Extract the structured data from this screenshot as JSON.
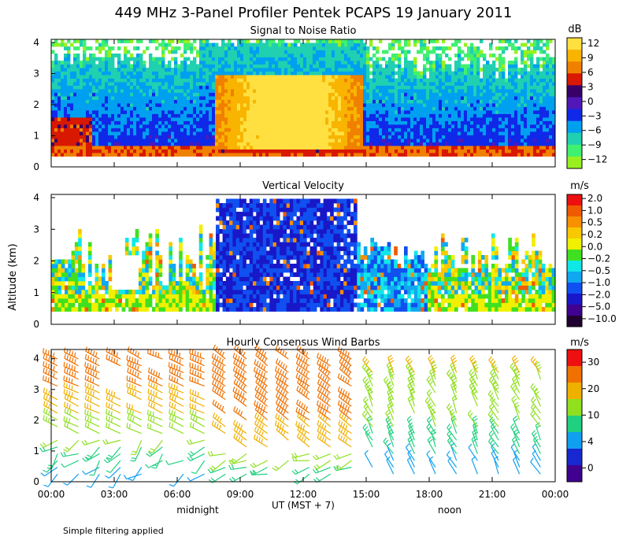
{
  "figure_title": "449 MHz 3-Panel Profiler Pentek PCAPS 19 January 2011",
  "y_axis_label": "Altitude (km)",
  "x_axis_label": "UT  (MST + 7)",
  "annotation_midnight": "midnight",
  "annotation_noon": "noon",
  "footnote": "Simple filtering applied",
  "chart_data": [
    {
      "type": "heatmap",
      "title": "Signal to Noise Ratio",
      "xlabel": "UT  (MST + 7)",
      "ylabel": "Altitude (km)",
      "x_ticks": [
        "00:00",
        "03:00",
        "06:00",
        "09:00",
        "12:00",
        "15:00",
        "18:00",
        "21:00",
        "00:00"
      ],
      "y_ticks": [
        "0",
        "1",
        "2",
        "3",
        "4"
      ],
      "ylim": [
        0,
        4.1
      ],
      "xlim_hours": [
        0,
        24
      ],
      "colorbar": {
        "unit": "dB",
        "labels": [
          "12",
          "9",
          "6",
          "3",
          "0",
          "−3",
          "−6",
          "−9",
          "−12"
        ],
        "colors": [
          "#ffe040",
          "#f8b400",
          "#f08000",
          "#d81800",
          "#380068",
          "#5018b8",
          "#1028e8",
          "#00a0f0",
          "#20d0b0",
          "#40f070",
          "#98f020"
        ]
      }
    },
    {
      "type": "heatmap",
      "title": "Vertical Velocity",
      "xlabel": "UT  (MST + 7)",
      "ylabel": "Altitude (km)",
      "x_ticks": [
        "00:00",
        "03:00",
        "06:00",
        "09:00",
        "12:00",
        "15:00",
        "18:00",
        "21:00",
        "00:00"
      ],
      "y_ticks": [
        "0",
        "1",
        "2",
        "3",
        "4"
      ],
      "ylim": [
        0,
        4.1
      ],
      "xlim_hours": [
        0,
        24
      ],
      "colorbar": {
        "unit": "m/s",
        "labels": [
          "2.0",
          "1.0",
          "0.5",
          "0.2",
          "0.0",
          "−0.2",
          "−0.5",
          "−1.0",
          "−2.0",
          "−5.0",
          "−10.0"
        ],
        "colors": [
          "#ee1010",
          "#f05a00",
          "#f89000",
          "#f8c800",
          "#f0f000",
          "#40e020",
          "#10e8e8",
          "#10a8f0",
          "#1050f0",
          "#1818c8",
          "#400090",
          "#200030"
        ]
      }
    },
    {
      "type": "wind_barbs",
      "title": "Hourly Consensus Wind Barbs",
      "xlabel": "UT  (MST + 7)",
      "ylabel": "Altitude (km)",
      "x_ticks": [
        "00:00",
        "03:00",
        "06:00",
        "09:00",
        "12:00",
        "15:00",
        "18:00",
        "21:00",
        "00:00"
      ],
      "y_ticks": [
        "0",
        "1",
        "2",
        "3",
        "4"
      ],
      "ylim": [
        0,
        4.3
      ],
      "xlim_hours": [
        0,
        24
      ],
      "colorbar": {
        "unit": "m/s",
        "labels": [
          "30",
          "20",
          "10",
          "4",
          "0"
        ],
        "colors": [
          "#ee1010",
          "#f07000",
          "#f0b000",
          "#90e020",
          "#20d080",
          "#10a0f0",
          "#1828d0",
          "#400090"
        ]
      }
    }
  ]
}
